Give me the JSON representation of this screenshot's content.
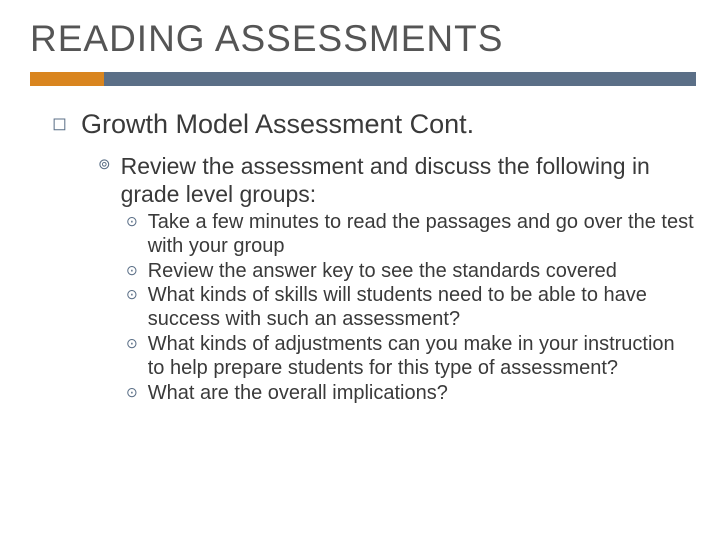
{
  "colors": {
    "accent_orange": "#d9851f",
    "accent_blue": "#5b6f87",
    "title_gray": "#555555",
    "body_gray": "#3a3a3a",
    "background": "#ffffff"
  },
  "title": "READING ASSESSMENTS",
  "bullets": {
    "lvl1": "Growth Model Assessment Cont.",
    "lvl2": "Review the assessment and discuss the following in grade level groups:",
    "lvl3": [
      "Take a few minutes to read the passages and go over the test with your group",
      "Review the answer key to see the standards covered",
      "What kinds of skills will students need to be able to have success with such an assessment?",
      "What kinds of adjustments can you make in your instruction to help prepare students for this type of assessment?",
      "What are the overall implications?"
    ]
  },
  "bullet_glyphs": {
    "square": "◻",
    "target": "⊚",
    "dotcircle": "⊙"
  }
}
